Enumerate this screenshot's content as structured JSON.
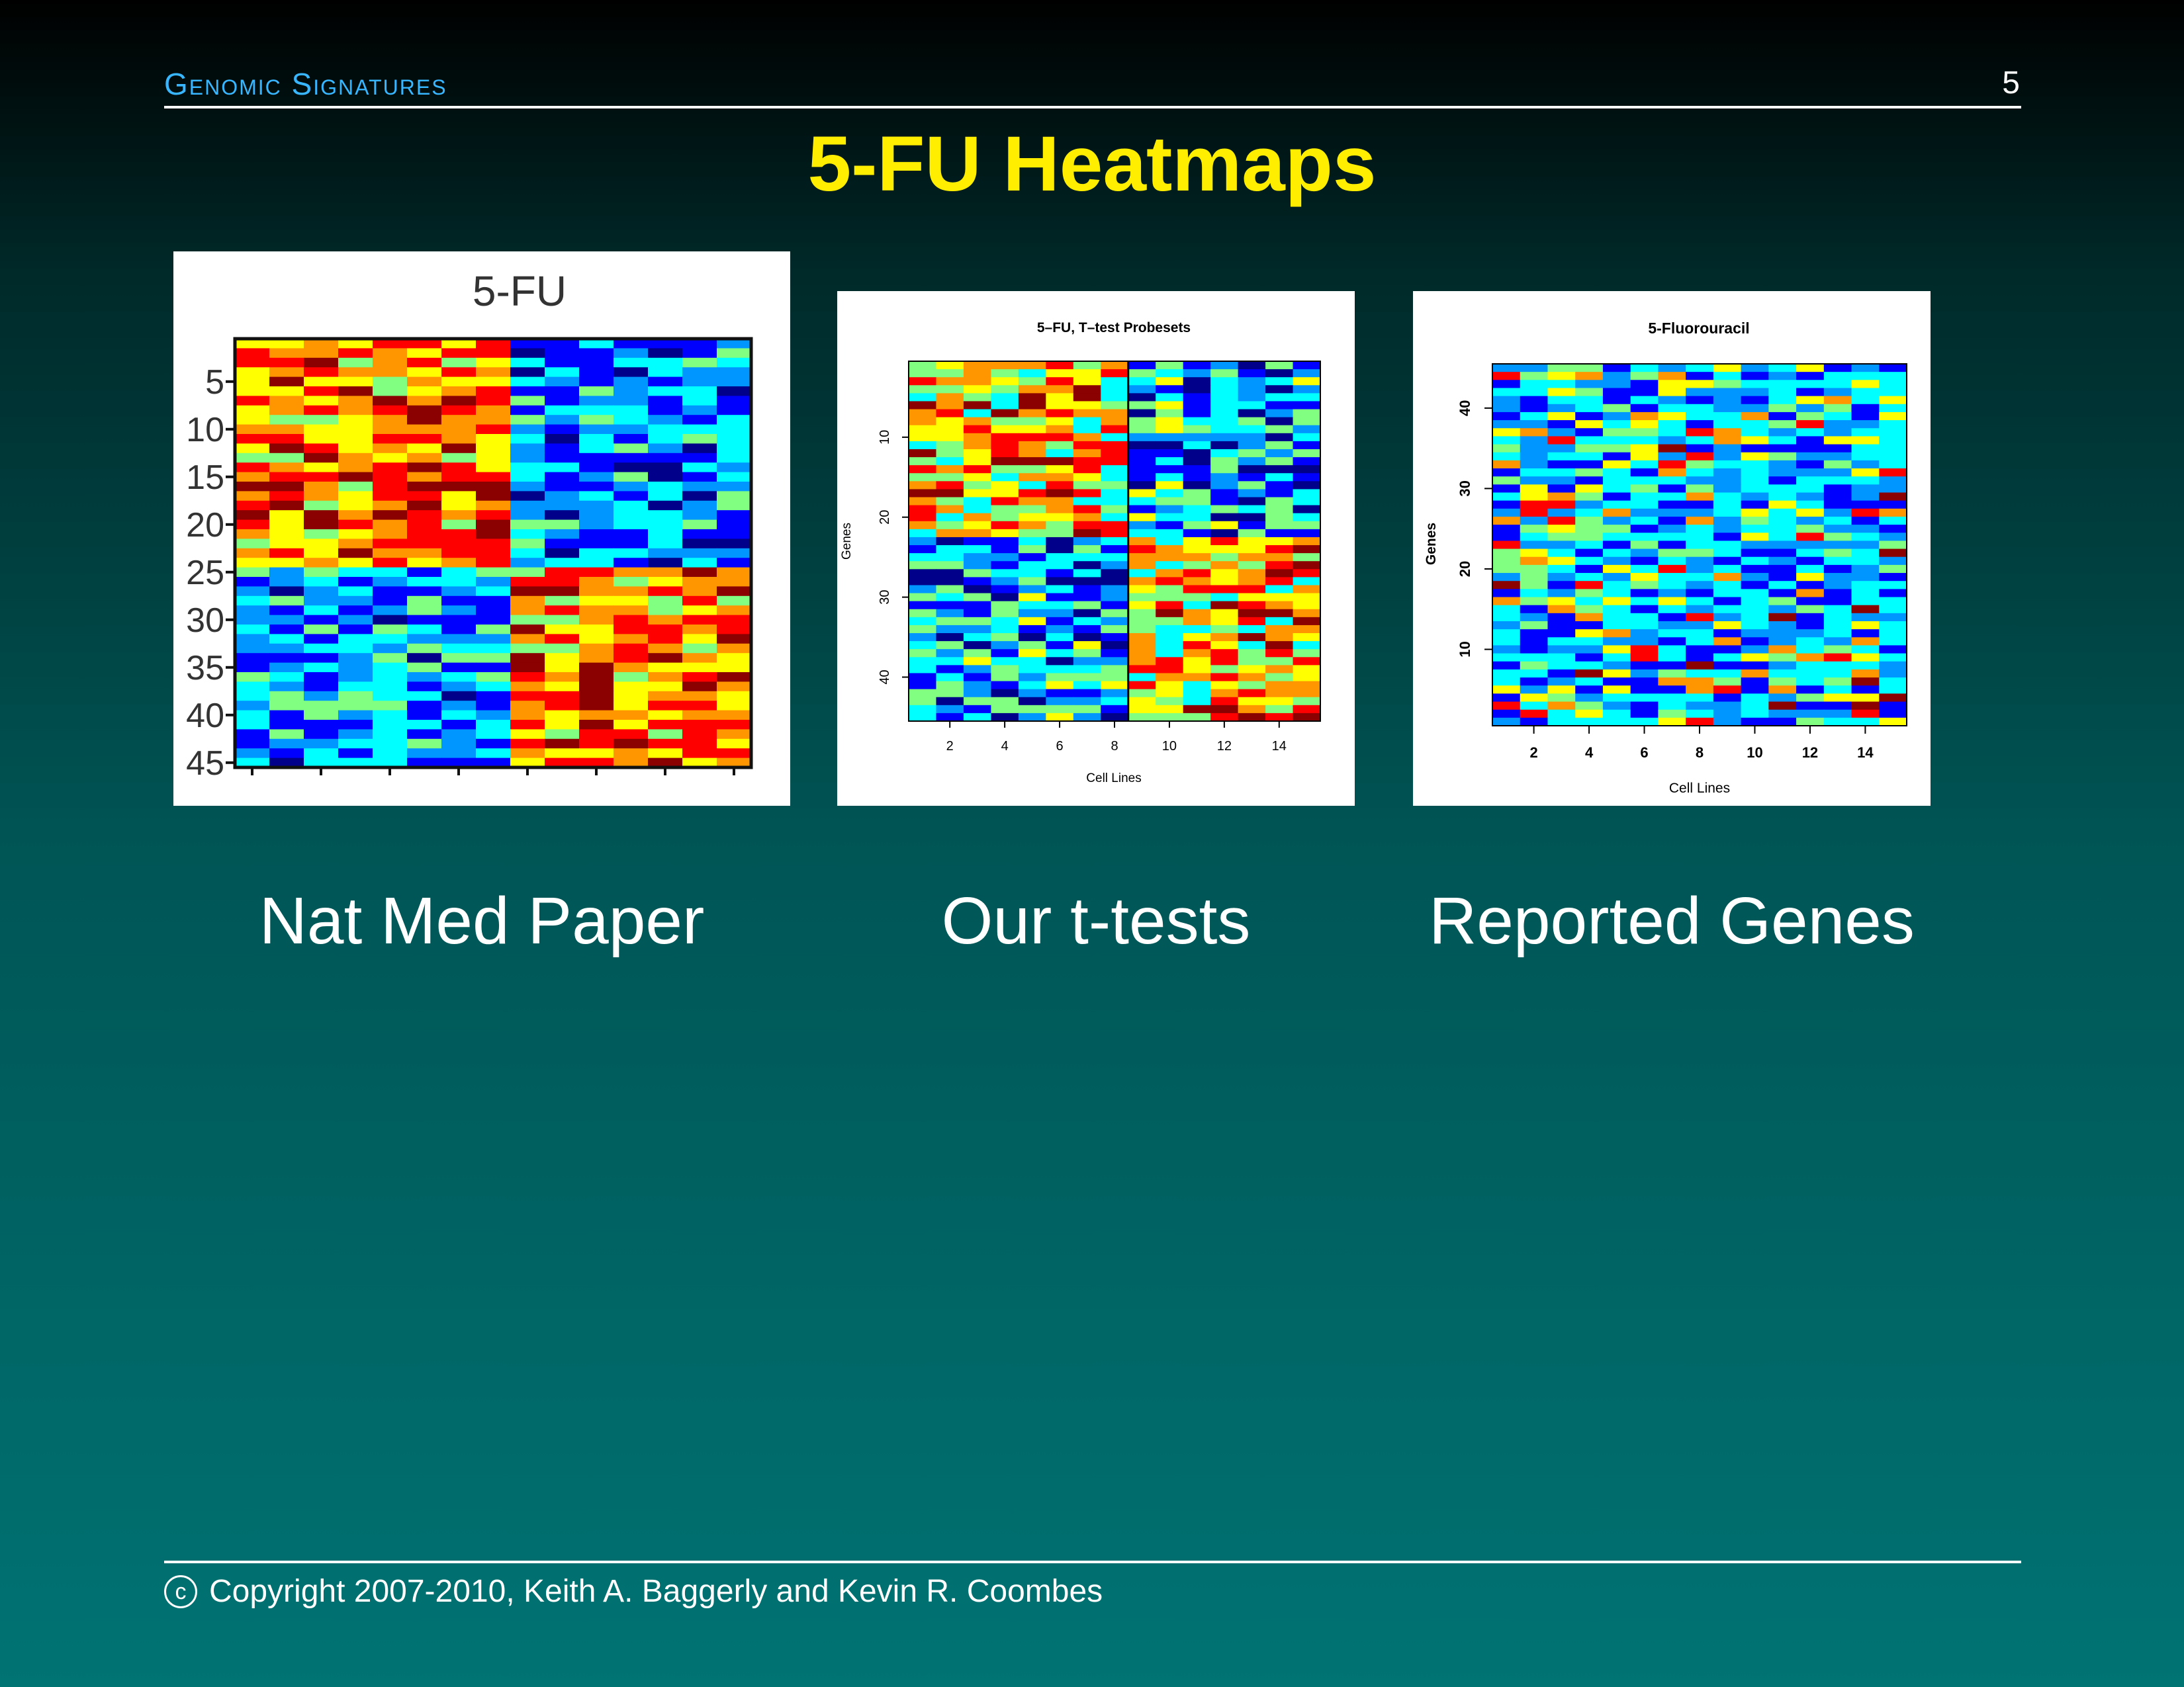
{
  "header": {
    "section": "Genomic Signatures",
    "page_number": "5"
  },
  "title": "5-FU Heatmaps",
  "captions": [
    "Nat Med Paper",
    "Our t-tests",
    "Reported Genes"
  ],
  "footer": {
    "symbol": "c",
    "text": "Copyright 2007-2010, Keith A. Baggerly and Kevin R. Coombes"
  },
  "colors": {
    "heatmap_scale": [
      "#00008b",
      "#0000ff",
      "#0096ff",
      "#00ffff",
      "#80ff80",
      "#ffff00",
      "#ff9600",
      "#ff0000",
      "#8b0000"
    ]
  },
  "chart_data": [
    {
      "type": "heatmap",
      "title": "5-FU",
      "xlabel": "",
      "ylabel": "",
      "rows": 45,
      "cols": 15,
      "y_tick_labels": [
        "5",
        "10",
        "15",
        "20",
        "25",
        "30",
        "35",
        "40",
        "45"
      ],
      "x_tick_labels": [],
      "color_scheme": "blue-to-red (jet)",
      "pattern": "upper rows high (yellow/red) in left columns, low (blue) in right columns; lower rows reversed"
    },
    {
      "type": "heatmap",
      "title": "5–FU, T–test Probesets",
      "xlabel": "Cell Lines",
      "ylabel": "Genes",
      "rows": 45,
      "cols": 15,
      "x_tick_labels": [
        "2",
        "4",
        "6",
        "8",
        "10",
        "12",
        "14"
      ],
      "y_tick_labels": [
        "10",
        "20",
        "30",
        "40"
      ],
      "divider_after_column": 8,
      "color_scheme": "blue-to-red (jet)",
      "pattern": "upper rows high in columns 1-8, lower rows high in columns 9-15"
    },
    {
      "type": "heatmap",
      "title": "5-Fluorouracil",
      "xlabel": "Cell Lines",
      "ylabel": "Genes",
      "rows": 45,
      "cols": 15,
      "x_tick_labels": [
        "2",
        "4",
        "6",
        "8",
        "10",
        "12",
        "14"
      ],
      "y_tick_labels": [
        "10",
        "20",
        "30",
        "40"
      ],
      "color_scheme": "blue-to-red (jet)",
      "pattern": "mostly blue/cyan with scattered yellow and red cells, no clear structure"
    }
  ]
}
